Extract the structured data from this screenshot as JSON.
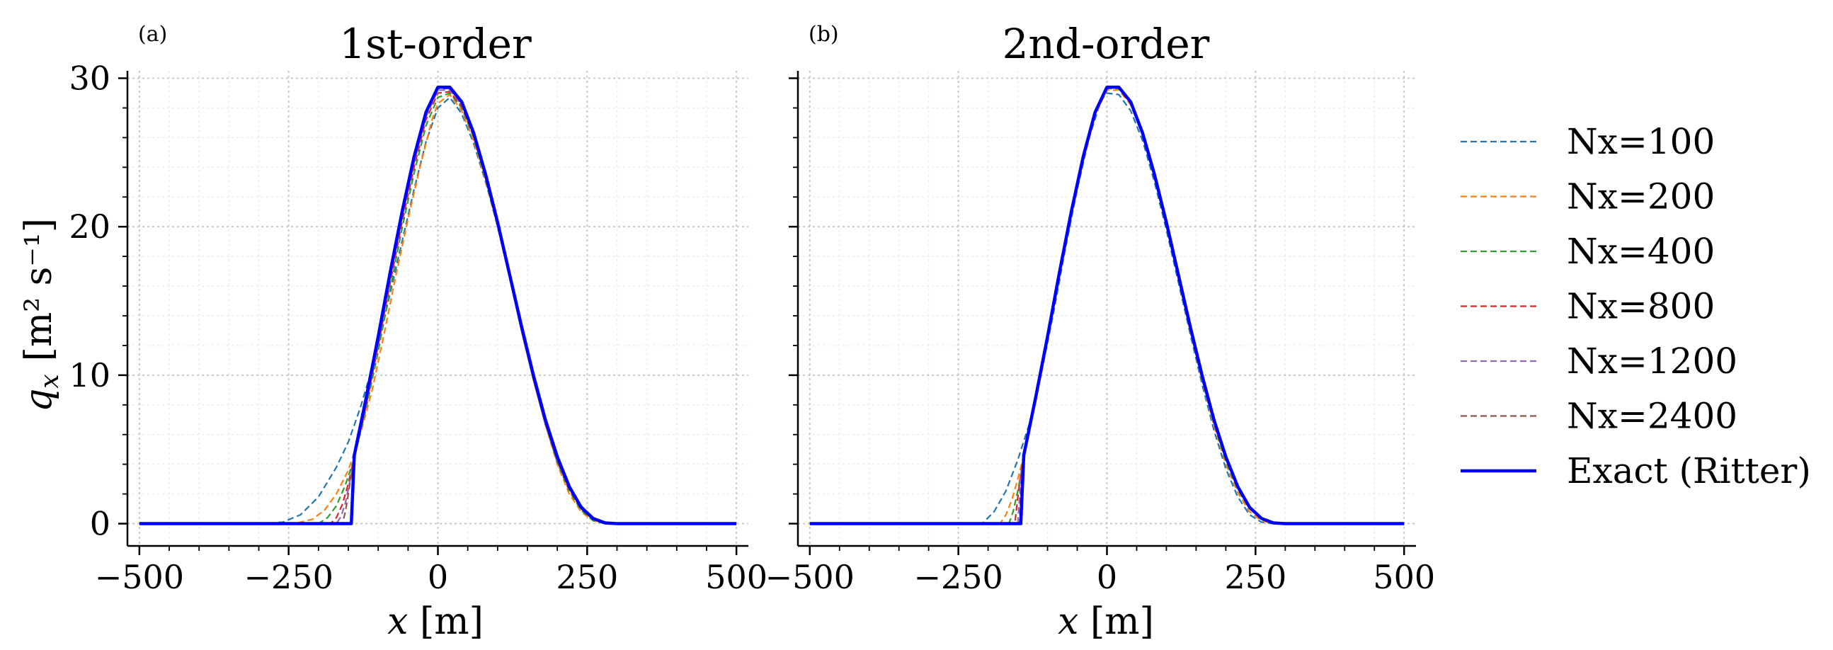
{
  "chart_data": [
    {
      "type": "line",
      "panel_label": "(a)",
      "title": "1st-order",
      "xlabel_var": "x",
      "xlabel_unit": " [m]",
      "ylabel_var": "q",
      "ylabel_sub": "x",
      "ylabel_unit": "[m² s⁻¹]",
      "xlim": [
        -520,
        520
      ],
      "ylim": [
        -1.5,
        30.5
      ],
      "xticks": [
        -500,
        -250,
        0,
        250,
        500
      ],
      "xtick_labels": [
        "−500",
        "−250",
        "0",
        "250",
        "500"
      ],
      "yticks": [
        0,
        10,
        20,
        30
      ],
      "ytick_labels": [
        "0",
        "10",
        "20",
        "30"
      ],
      "grid": true,
      "series": [
        {
          "name": "Nx=100",
          "color": "#1f77b4",
          "style": "dashed",
          "x": [
            -500,
            -300,
            -260,
            -230,
            -200,
            -170,
            -150,
            -130,
            -110,
            -100,
            -80,
            -60,
            -40,
            -20,
            0,
            20,
            40,
            60,
            80,
            100,
            120,
            140,
            160,
            180,
            200,
            220,
            240,
            260,
            280,
            300,
            330,
            500
          ],
          "y": [
            0,
            0,
            0.1,
            0.6,
            1.8,
            3.8,
            5.5,
            7.8,
            10.5,
            12.0,
            15.5,
            19.0,
            22.5,
            25.7,
            28.0,
            28.7,
            27.6,
            25.6,
            23.0,
            20.0,
            16.7,
            13.3,
            10.0,
            7.0,
            4.5,
            2.4,
            1.0,
            0.3,
            0.05,
            0,
            0,
            0
          ]
        },
        {
          "name": "Nx=200",
          "color": "#ff7f0e",
          "style": "dashed",
          "x": [
            -500,
            -240,
            -210,
            -190,
            -170,
            -150,
            -130,
            -110,
            -90,
            -70,
            -50,
            -30,
            -10,
            0,
            20,
            40,
            60,
            80,
            100,
            120,
            140,
            160,
            180,
            200,
            220,
            240,
            260,
            280,
            300,
            500
          ],
          "y": [
            0,
            0,
            0.3,
            0.9,
            2.0,
            3.6,
            6.0,
            9.0,
            12.8,
            16.8,
            20.5,
            24.0,
            27.2,
            28.3,
            28.9,
            27.8,
            25.8,
            23.1,
            20.0,
            16.6,
            13.1,
            9.7,
            6.7,
            4.0,
            2.0,
            0.8,
            0.2,
            0,
            0,
            0
          ]
        },
        {
          "name": "Nx=400",
          "color": "#2ca02c",
          "style": "dashed",
          "x": [
            -500,
            -200,
            -185,
            -170,
            -155,
            -140,
            -120,
            -100,
            -80,
            -60,
            -40,
            -20,
            0,
            20,
            40,
            60,
            80,
            100,
            120,
            140,
            160,
            180,
            200,
            220,
            240,
            260,
            280,
            300,
            500
          ],
          "y": [
            0,
            0,
            0.4,
            1.2,
            2.6,
            4.4,
            7.8,
            11.6,
            15.8,
            19.9,
            23.6,
            26.8,
            28.7,
            29.0,
            28.0,
            26.0,
            23.2,
            20.1,
            16.6,
            13.1,
            9.7,
            6.7,
            4.1,
            2.2,
            0.9,
            0.2,
            0,
            0,
            0
          ]
        },
        {
          "name": "Nx=800",
          "color": "#d62728",
          "style": "dashed",
          "x": [
            -500,
            -180,
            -170,
            -160,
            -150,
            -140,
            -120,
            -100,
            -80,
            -60,
            -40,
            -20,
            0,
            20,
            40,
            60,
            80,
            100,
            120,
            140,
            160,
            180,
            200,
            220,
            240,
            260,
            280,
            300,
            500
          ],
          "y": [
            0,
            0,
            0.4,
            1.3,
            2.7,
            4.5,
            8.0,
            12.0,
            16.2,
            20.3,
            24.0,
            27.2,
            29.0,
            29.1,
            28.1,
            26.1,
            23.3,
            20.1,
            16.6,
            13.0,
            9.7,
            6.7,
            4.2,
            2.3,
            1.0,
            0.3,
            0.05,
            0,
            0
          ]
        },
        {
          "name": "Nx=1200",
          "color": "#9467bd",
          "style": "dashed",
          "x": [
            -500,
            -170,
            -162,
            -155,
            -148,
            -140,
            -120,
            -100,
            -80,
            -60,
            -40,
            -20,
            0,
            20,
            40,
            60,
            80,
            100,
            120,
            140,
            160,
            180,
            200,
            220,
            240,
            260,
            280,
            300,
            500
          ],
          "y": [
            0,
            0,
            0.5,
            1.4,
            2.7,
            4.5,
            8.2,
            12.2,
            16.5,
            20.6,
            24.3,
            27.4,
            29.2,
            29.2,
            28.2,
            26.2,
            23.3,
            20.1,
            16.6,
            13.0,
            9.7,
            6.7,
            4.2,
            2.4,
            1.1,
            0.35,
            0.05,
            0,
            0
          ]
        },
        {
          "name": "Nx=2400",
          "color": "#8c564b",
          "style": "dashed",
          "x": [
            -500,
            -160,
            -155,
            -150,
            -145,
            -140,
            -120,
            -100,
            -80,
            -60,
            -40,
            -20,
            0,
            20,
            40,
            60,
            80,
            100,
            120,
            140,
            160,
            180,
            200,
            220,
            240,
            260,
            280,
            300,
            500
          ],
          "y": [
            0,
            0,
            0.8,
            2.0,
            3.3,
            4.6,
            8.4,
            12.5,
            16.8,
            20.9,
            24.6,
            27.6,
            29.3,
            29.3,
            28.3,
            26.2,
            23.4,
            20.2,
            16.6,
            13.0,
            9.7,
            6.7,
            4.2,
            2.4,
            1.2,
            0.4,
            0.07,
            0,
            0
          ]
        },
        {
          "name": "Exact (Ritter)",
          "color": "#0000ff",
          "style": "solid",
          "x": [
            -500,
            -145,
            -140,
            -120,
            -100,
            -80,
            -60,
            -40,
            -20,
            0,
            20,
            40,
            60,
            80,
            100,
            120,
            140,
            160,
            180,
            200,
            220,
            240,
            260,
            280,
            300,
            500
          ],
          "y": [
            0,
            0,
            4.6,
            8.5,
            12.6,
            16.9,
            21.0,
            24.7,
            27.7,
            29.4,
            29.4,
            28.4,
            26.3,
            23.5,
            20.3,
            16.8,
            13.3,
            10.0,
            7.0,
            4.5,
            2.5,
            1.1,
            0.35,
            0.05,
            0,
            0
          ]
        }
      ]
    },
    {
      "type": "line",
      "panel_label": "(b)",
      "title": "2nd-order",
      "xlabel_var": "x",
      "xlabel_unit": " [m]",
      "xlim": [
        -520,
        520
      ],
      "ylim": [
        -1.5,
        30.5
      ],
      "xticks": [
        -500,
        -250,
        0,
        250,
        500
      ],
      "xtick_labels": [
        "−500",
        "−250",
        "0",
        "250",
        "500"
      ],
      "yticks": [
        0,
        10,
        20,
        30
      ],
      "grid": true,
      "series": [
        {
          "name": "Nx=100",
          "color": "#1f77b4",
          "style": "dashed",
          "x": [
            -500,
            -210,
            -190,
            -170,
            -150,
            -130,
            -110,
            -90,
            -70,
            -50,
            -30,
            -10,
            0,
            20,
            40,
            60,
            80,
            100,
            120,
            140,
            160,
            180,
            200,
            220,
            240,
            260,
            280,
            500
          ],
          "y": [
            0,
            0,
            0.8,
            2.2,
            4.3,
            6.8,
            10.2,
            14.2,
            18.5,
            22.5,
            26.0,
            28.5,
            29.0,
            28.9,
            27.8,
            25.8,
            23.0,
            19.8,
            16.3,
            12.8,
            9.4,
            6.3,
            3.7,
            1.8,
            0.6,
            0.1,
            0,
            0
          ]
        },
        {
          "name": "Nx=200",
          "color": "#ff7f0e",
          "style": "dashed",
          "x": [
            -500,
            -180,
            -170,
            -160,
            -150,
            -140,
            -120,
            -100,
            -80,
            -60,
            -40,
            -20,
            0,
            20,
            40,
            60,
            80,
            100,
            120,
            140,
            160,
            180,
            200,
            220,
            240,
            260,
            280,
            500
          ],
          "y": [
            0,
            0,
            0.6,
            1.6,
            3.0,
            4.6,
            8.2,
            12.3,
            16.6,
            20.7,
            24.4,
            27.5,
            29.2,
            29.2,
            28.2,
            26.2,
            23.3,
            20.1,
            16.6,
            13.0,
            9.7,
            6.6,
            4.0,
            2.1,
            0.8,
            0.2,
            0,
            0
          ]
        },
        {
          "name": "Nx=400",
          "color": "#2ca02c",
          "style": "dashed",
          "x": [
            -500,
            -165,
            -158,
            -150,
            -145,
            -140,
            -120,
            -100,
            -80,
            -60,
            -40,
            -20,
            0,
            20,
            40,
            60,
            80,
            100,
            120,
            140,
            160,
            180,
            200,
            220,
            240,
            260,
            280,
            500
          ],
          "y": [
            0,
            0,
            0.8,
            2.2,
            3.3,
            4.6,
            8.4,
            12.5,
            16.8,
            20.9,
            24.6,
            27.6,
            29.3,
            29.3,
            28.3,
            26.3,
            23.4,
            20.2,
            16.7,
            13.1,
            9.8,
            6.8,
            4.2,
            2.3,
            1.0,
            0.3,
            0.03,
            0
          ]
        },
        {
          "name": "Nx=800",
          "color": "#d62728",
          "style": "dashed",
          "x": [
            -500,
            -155,
            -150,
            -145,
            -140,
            -120,
            -100,
            -80,
            -60,
            -40,
            -20,
            0,
            20,
            40,
            60,
            80,
            100,
            120,
            140,
            160,
            180,
            200,
            220,
            240,
            260,
            280,
            300,
            500
          ],
          "y": [
            0,
            0,
            1.8,
            3.3,
            4.6,
            8.5,
            12.6,
            16.9,
            21.0,
            24.7,
            27.7,
            29.4,
            29.4,
            28.4,
            26.3,
            23.5,
            20.3,
            16.8,
            13.2,
            9.9,
            6.9,
            4.4,
            2.4,
            1.1,
            0.35,
            0.05,
            0,
            0
          ]
        },
        {
          "name": "Nx=1200",
          "color": "#9467bd",
          "style": "dashed",
          "x": [
            -500,
            -150,
            -145,
            -140,
            -120,
            -100,
            -80,
            -60,
            -40,
            -20,
            0,
            20,
            40,
            60,
            80,
            100,
            120,
            140,
            160,
            180,
            200,
            220,
            240,
            260,
            280,
            300,
            500
          ],
          "y": [
            0,
            0,
            3.0,
            4.6,
            8.5,
            12.6,
            16.9,
            21.0,
            24.7,
            27.7,
            29.4,
            29.4,
            28.4,
            26.3,
            23.5,
            20.3,
            16.8,
            13.3,
            10.0,
            7.0,
            4.5,
            2.5,
            1.1,
            0.35,
            0.05,
            0,
            0
          ]
        },
        {
          "name": "Nx=2400",
          "color": "#8c564b",
          "style": "dashed",
          "x": [
            -500,
            -147,
            -143,
            -140,
            -120,
            -100,
            -80,
            -60,
            -40,
            -20,
            0,
            20,
            40,
            60,
            80,
            100,
            120,
            140,
            160,
            180,
            200,
            220,
            240,
            260,
            280,
            300,
            500
          ],
          "y": [
            0,
            0,
            3.5,
            4.6,
            8.5,
            12.6,
            16.9,
            21.0,
            24.7,
            27.7,
            29.4,
            29.4,
            28.4,
            26.3,
            23.5,
            20.3,
            16.8,
            13.3,
            10.0,
            7.0,
            4.5,
            2.5,
            1.1,
            0.35,
            0.05,
            0,
            0
          ]
        },
        {
          "name": "Exact (Ritter)",
          "color": "#0000ff",
          "style": "solid",
          "x": [
            -500,
            -145,
            -140,
            -120,
            -100,
            -80,
            -60,
            -40,
            -20,
            0,
            20,
            40,
            60,
            80,
            100,
            120,
            140,
            160,
            180,
            200,
            220,
            240,
            260,
            280,
            300,
            500
          ],
          "y": [
            0,
            0,
            4.6,
            8.5,
            12.6,
            16.9,
            21.0,
            24.7,
            27.7,
            29.4,
            29.4,
            28.4,
            26.3,
            23.5,
            20.3,
            16.8,
            13.3,
            10.0,
            7.0,
            4.5,
            2.5,
            1.1,
            0.35,
            0.05,
            0,
            0
          ]
        }
      ]
    }
  ],
  "legend": {
    "placement": "right",
    "entries": [
      {
        "label": "Nx=100",
        "color": "#1f77b4",
        "style": "dashed"
      },
      {
        "label": "Nx=200",
        "color": "#ff7f0e",
        "style": "dashed"
      },
      {
        "label": "Nx=400",
        "color": "#2ca02c",
        "style": "dashed"
      },
      {
        "label": "Nx=800",
        "color": "#d62728",
        "style": "dashed"
      },
      {
        "label": "Nx=1200",
        "color": "#9467bd",
        "style": "dashed"
      },
      {
        "label": "Nx=2400",
        "color": "#8c564b",
        "style": "dashed"
      },
      {
        "label": "Exact (Ritter)",
        "color": "#0000ff",
        "style": "solid"
      }
    ]
  }
}
